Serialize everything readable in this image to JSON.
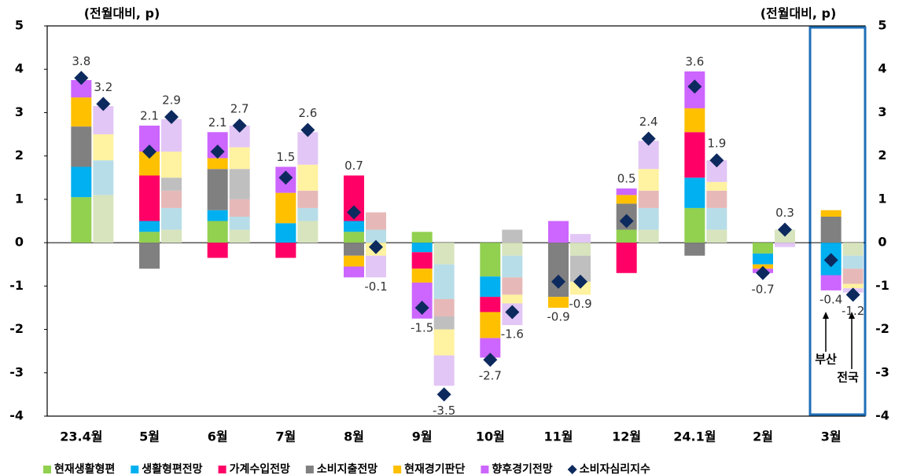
{
  "chart_data": {
    "type": "bar",
    "y_label": "(전월대비, p)",
    "y2_label": "(전월대비, p)",
    "categories": [
      "23.4월",
      "5월",
      "6월",
      "7월",
      "8월",
      "9월",
      "10월",
      "11월",
      "12월",
      "24.1월",
      "2월",
      "3월"
    ],
    "ylim": [
      -4,
      5
    ],
    "yticks": [
      -4,
      -3,
      -2,
      -1,
      0,
      1,
      2,
      3,
      4,
      5
    ],
    "y2lim": [
      -4,
      5
    ],
    "y2ticks": [
      -4,
      -3,
      -2,
      -1,
      0,
      1,
      2,
      3,
      4,
      5
    ],
    "series": [
      {
        "name": "현재생활형편",
        "color": "#92d050",
        "light_color": "#d7e4bd",
        "values": [
          1.05,
          0.25,
          0.5,
          0,
          0.25,
          0.25,
          -0.78,
          0,
          0.3,
          0.8,
          -0.25,
          0
        ],
        "national_values": [
          1.1,
          0.3,
          0.3,
          0.5,
          0,
          -0.5,
          -0.3,
          -0.3,
          0.3,
          0.3,
          0.3,
          -0.3
        ]
      },
      {
        "name": "생활형편전망",
        "color": "#00b0f0",
        "light_color": "#b7dde8",
        "values": [
          0.7,
          0.25,
          0.25,
          0.45,
          0.25,
          -0.22,
          -0.47,
          0,
          0,
          0.7,
          -0.25,
          -0.75
        ],
        "national_values": [
          0.8,
          0.5,
          0.3,
          0.3,
          0.3,
          -0.8,
          -0.5,
          0,
          0.5,
          0.5,
          0,
          -0.3
        ]
      },
      {
        "name": "가계수입전망",
        "color": "#ff0066",
        "light_color": "#e6b9b8",
        "values": [
          0,
          1.05,
          -0.35,
          -0.35,
          1.05,
          -0.38,
          -0.35,
          0,
          -0.7,
          1.05,
          0,
          0
        ],
        "national_values": [
          0,
          0.4,
          0.4,
          0.4,
          0.4,
          -0.4,
          -0.4,
          0,
          0.4,
          0.4,
          0,
          -0.35
        ]
      },
      {
        "name": "소비지출전망",
        "color": "#808080",
        "light_color": "#bfbfbf",
        "values": [
          0.93,
          -0.6,
          0.95,
          0,
          -0.3,
          0,
          0,
          -1.25,
          0.6,
          -0.3,
          0,
          0.6
        ],
        "national_values": [
          0,
          0.3,
          0.7,
          0,
          0,
          -0.3,
          0.3,
          -0.6,
          0,
          0,
          0,
          0
        ]
      },
      {
        "name": "현재경기판단",
        "color": "#ffc000",
        "light_color": "#fff2a0",
        "values": [
          0.67,
          0.55,
          0.25,
          0.7,
          -0.25,
          -0.32,
          -0.6,
          -0.25,
          0.2,
          0.55,
          -0.1,
          0.15
        ],
        "national_values": [
          0.6,
          0.6,
          0.5,
          0.6,
          -0.3,
          -0.6,
          -0.2,
          -0.3,
          0.5,
          0.2,
          0,
          -0.1
        ]
      },
      {
        "name": "향후경기전망",
        "color": "#cc66ff",
        "light_color": "#e2c6f5",
        "values": [
          0.4,
          0.6,
          0.6,
          0.6,
          -0.25,
          -0.83,
          -0.45,
          0.5,
          0.15,
          0.85,
          -0.1,
          -0.35
        ],
        "national_values": [
          0.65,
          0.75,
          0.5,
          0.75,
          -0.5,
          -0.7,
          -0.5,
          0.2,
          0.65,
          0.5,
          -0.1,
          -0.1
        ]
      }
    ],
    "index": {
      "name": "소비자심리지수",
      "color": "#0d2a5e",
      "values": [
        3.8,
        2.1,
        2.1,
        1.5,
        0.7,
        -1.5,
        -2.7,
        -0.9,
        0.5,
        3.6,
        -0.7,
        -0.4
      ],
      "national_values": [
        3.2,
        2.9,
        2.7,
        2.6,
        -0.1,
        -3.5,
        -1.6,
        -0.9,
        2.4,
        1.9,
        0.3,
        -1.2
      ]
    },
    "annotations": [
      "부산",
      "전국"
    ]
  }
}
